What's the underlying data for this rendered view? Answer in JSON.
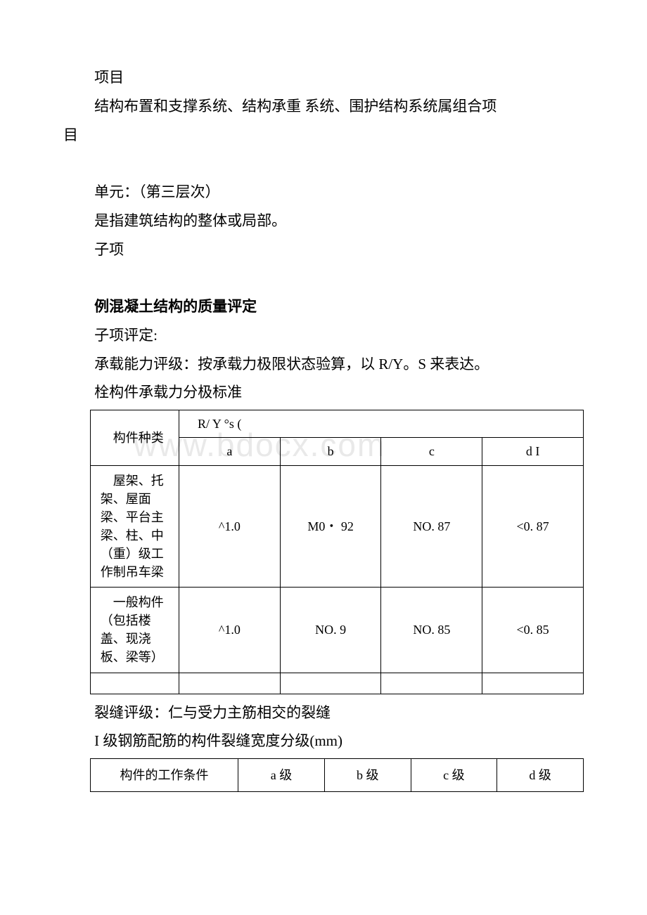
{
  "colors": {
    "text": "#000000",
    "bg": "#ffffff",
    "watermark": "#e9e9e9",
    "border": "#000000"
  },
  "typography": {
    "body_fontsize": 21,
    "table_fontsize": 18,
    "watermark_fontsize": 46,
    "line_height": 1.95
  },
  "watermark": "www.bdocx.com",
  "paragraphs": {
    "p1": "项目",
    "p2a": "结构布置和支撑系统、结构承重 系统、围护结构系统属组合项",
    "p2b": "目",
    "p3": "单元：（第三层次）",
    "p4": "是指建筑结构的整体或局部。",
    "p5": "子项",
    "h1": "例混凝土结构的质量评定",
    "p6": "子项评定:",
    "p7": "承载能力评级：按承载力极限状态验算，以 R/Y。S 来表达。",
    "p8": "栓构件承载力分极标准",
    "p9": "裂缝评级：仁与受力主筋相交的裂缝",
    "p10": "I 级钢筋配筋的构件裂缝宽度分级(mm)"
  },
  "table1": {
    "type": "table",
    "header_rowspan_label": "构件种类",
    "header_colspan_label": "R/ Y °s (",
    "columns": [
      "a",
      "b",
      "c",
      "d I"
    ],
    "col_widths_pct": [
      18,
      20.5,
      20.5,
      20.5,
      20.5
    ],
    "rows": [
      {
        "label": "屋架、托架、屋面梁、平台主梁、柱、中（重）级工作制吊车梁",
        "values": [
          "^1.0",
          "M0・ 92",
          "NO. 87",
          "<0. 87"
        ]
      },
      {
        "label": "一般构件（包括楼盖、现浇板、梁等）",
        "values": [
          "^1.0",
          "NO. 9",
          "NO. 85",
          "<0. 85"
        ]
      }
    ],
    "has_trailing_empty_row": true
  },
  "table2": {
    "type": "table",
    "columns": [
      "构件的工作条件",
      "a 级",
      "b 级",
      "c 级",
      "d 级"
    ],
    "col_widths_pct": [
      30,
      17.5,
      17.5,
      17.5,
      17.5
    ]
  }
}
